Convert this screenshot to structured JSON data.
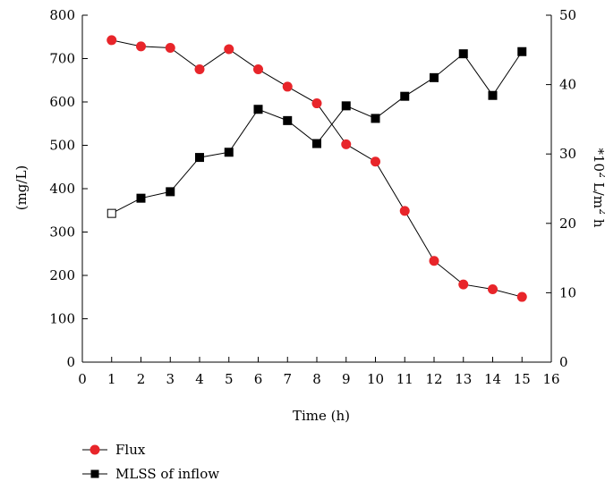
{
  "chart_data": {
    "type": "line",
    "xlabel": "Time (h)",
    "ylabel_left": "(mg/L)",
    "ylabel_right": "*10",
    "ylabel_right_sup1": "2",
    "ylabel_right_mid": " L/m",
    "ylabel_right_sup2": "2",
    "ylabel_right_end": " h",
    "xlim": [
      0,
      16
    ],
    "ylim_left": [
      0,
      800
    ],
    "ylim_right": [
      0,
      50
    ],
    "x_ticks": [
      "0",
      "1",
      "2",
      "3",
      "4",
      "5",
      "6",
      "7",
      "8",
      "9",
      "10",
      "11",
      "12",
      "13",
      "14",
      "15",
      "16"
    ],
    "y_left_ticks": [
      "0",
      "100",
      "200",
      "300",
      "400",
      "500",
      "600",
      "700",
      "800"
    ],
    "y_right_ticks": [
      "0",
      "10",
      "20",
      "30",
      "40",
      "50"
    ],
    "grid": false,
    "legend_position": "bottom-left",
    "series": [
      {
        "name": "Flux",
        "axis": "right",
        "color": "#e8252a",
        "marker": "circle",
        "x": [
          1,
          2,
          3,
          4,
          5,
          6,
          7,
          8,
          9,
          10,
          11,
          12,
          13,
          14,
          15
        ],
        "y": [
          46.4,
          45.5,
          45.3,
          42.2,
          45.1,
          42.2,
          39.7,
          37.3,
          31.4,
          28.9,
          21.8,
          14.6,
          11.2,
          10.5,
          9.4
        ]
      },
      {
        "name": "MLSS of inflow",
        "axis": "left",
        "color": "#000000",
        "marker": "square",
        "x": [
          1,
          2,
          3,
          4,
          5,
          6,
          7,
          8,
          9,
          10,
          11,
          12,
          13,
          14,
          15
        ],
        "y": [
          343,
          378,
          393,
          472,
          484,
          583,
          557,
          504,
          591,
          562,
          613,
          656,
          711,
          615,
          716
        ]
      }
    ]
  }
}
